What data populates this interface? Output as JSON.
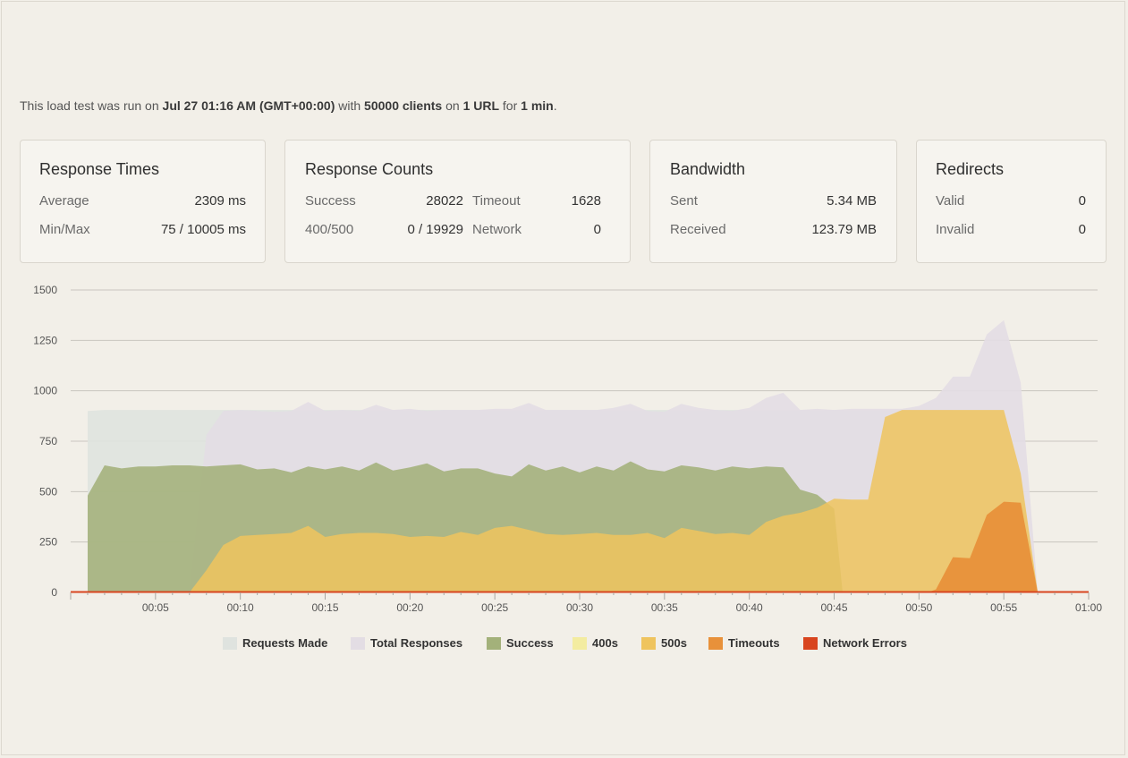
{
  "summary": {
    "prefix": "This load test was run on ",
    "date": "Jul 27 01:16 AM (GMT+00:00)",
    "with": " with ",
    "clients": "50000 clients",
    "on": " on ",
    "urls": "1 URL",
    "for": " for ",
    "duration": "1 min",
    "end": "."
  },
  "cards": {
    "response_times": {
      "title": "Response Times",
      "average_label": "Average",
      "average_value": "2309 ms",
      "minmax_label": "Min/Max",
      "minmax_value": "75 / 10005 ms"
    },
    "response_counts": {
      "title": "Response Counts",
      "success_label": "Success",
      "success_value": "28022",
      "timeout_label": "Timeout",
      "timeout_value": "1628",
      "status_label": "400/500",
      "status_value": "0 / 19929",
      "network_label": "Network",
      "network_value": "0"
    },
    "bandwidth": {
      "title": "Bandwidth",
      "sent_label": "Sent",
      "sent_value": "5.34 MB",
      "received_label": "Received",
      "received_value": "123.79 MB"
    },
    "redirects": {
      "title": "Redirects",
      "valid_label": "Valid",
      "valid_value": "0",
      "invalid_label": "Invalid",
      "invalid_value": "0"
    }
  },
  "chart_data": {
    "type": "area",
    "title": "",
    "xlabel": "",
    "ylabel": "",
    "xlim": [
      0,
      60
    ],
    "ylim": [
      0,
      1500
    ],
    "yticks": [
      0,
      250,
      500,
      750,
      1000,
      1250,
      1500
    ],
    "xticks": [
      {
        "t": 5,
        "label": "00:05"
      },
      {
        "t": 10,
        "label": "00:10"
      },
      {
        "t": 15,
        "label": "00:15"
      },
      {
        "t": 20,
        "label": "00:20"
      },
      {
        "t": 25,
        "label": "00:25"
      },
      {
        "t": 30,
        "label": "00:30"
      },
      {
        "t": 35,
        "label": "00:35"
      },
      {
        "t": 40,
        "label": "00:40"
      },
      {
        "t": 45,
        "label": "00:45"
      },
      {
        "t": 50,
        "label": "00:50"
      },
      {
        "t": 55,
        "label": "00:55"
      },
      {
        "t": 60,
        "label": "01:00"
      }
    ],
    "grid": true,
    "legend_position": "bottom",
    "series": [
      {
        "name": "Requests Made",
        "color": "#dfe3df",
        "opacity": 0.9,
        "points": [
          [
            1,
            0
          ],
          [
            1,
            900
          ],
          [
            2,
            905
          ],
          [
            10,
            905
          ],
          [
            20,
            905
          ],
          [
            30,
            905
          ],
          [
            40,
            905
          ],
          [
            48,
            905
          ],
          [
            49,
            905
          ],
          [
            52,
            905
          ],
          [
            52.5,
            0
          ]
        ]
      },
      {
        "name": "Total Responses",
        "color": "#e3dde4",
        "opacity": 0.9,
        "points": [
          [
            7,
            0
          ],
          [
            8,
            780
          ],
          [
            9,
            900
          ],
          [
            10,
            905
          ],
          [
            11,
            900
          ],
          [
            12,
            895
          ],
          [
            13,
            900
          ],
          [
            14,
            945
          ],
          [
            15,
            900
          ],
          [
            16,
            905
          ],
          [
            17,
            900
          ],
          [
            18,
            930
          ],
          [
            19,
            905
          ],
          [
            20,
            910
          ],
          [
            21,
            900
          ],
          [
            22,
            905
          ],
          [
            23,
            905
          ],
          [
            24,
            905
          ],
          [
            25,
            910
          ],
          [
            26,
            910
          ],
          [
            27,
            940
          ],
          [
            28,
            905
          ],
          [
            29,
            905
          ],
          [
            30,
            905
          ],
          [
            31,
            905
          ],
          [
            32,
            915
          ],
          [
            33,
            935
          ],
          [
            34,
            900
          ],
          [
            35,
            895
          ],
          [
            36,
            935
          ],
          [
            37,
            915
          ],
          [
            38,
            905
          ],
          [
            39,
            900
          ],
          [
            40,
            915
          ],
          [
            41,
            965
          ],
          [
            42,
            990
          ],
          [
            43,
            905
          ],
          [
            44,
            910
          ],
          [
            45,
            905
          ],
          [
            46,
            910
          ],
          [
            47,
            910
          ],
          [
            48,
            910
          ],
          [
            49,
            910
          ],
          [
            50,
            925
          ],
          [
            51,
            965
          ],
          [
            52,
            1070
          ],
          [
            53,
            1070
          ],
          [
            54,
            1280
          ],
          [
            55,
            1350
          ],
          [
            56,
            1040
          ],
          [
            57,
            0
          ]
        ]
      },
      {
        "name": "Success",
        "color": "#a3b17a",
        "opacity": 0.88,
        "points": [
          [
            1,
            0
          ],
          [
            1,
            480
          ],
          [
            2,
            630
          ],
          [
            3,
            615
          ],
          [
            4,
            625
          ],
          [
            5,
            625
          ],
          [
            6,
            630
          ],
          [
            7,
            630
          ],
          [
            8,
            625
          ],
          [
            9,
            630
          ],
          [
            10,
            635
          ],
          [
            11,
            610
          ],
          [
            12,
            615
          ],
          [
            13,
            595
          ],
          [
            14,
            625
          ],
          [
            15,
            610
          ],
          [
            16,
            625
          ],
          [
            17,
            605
          ],
          [
            18,
            645
          ],
          [
            19,
            605
          ],
          [
            20,
            620
          ],
          [
            21,
            640
          ],
          [
            22,
            600
          ],
          [
            23,
            615
          ],
          [
            24,
            615
          ],
          [
            25,
            590
          ],
          [
            26,
            575
          ],
          [
            27,
            635
          ],
          [
            28,
            605
          ],
          [
            29,
            625
          ],
          [
            30,
            595
          ],
          [
            31,
            625
          ],
          [
            32,
            605
          ],
          [
            33,
            650
          ],
          [
            34,
            610
          ],
          [
            35,
            600
          ],
          [
            36,
            630
          ],
          [
            37,
            620
          ],
          [
            38,
            605
          ],
          [
            39,
            625
          ],
          [
            40,
            615
          ],
          [
            41,
            625
          ],
          [
            42,
            620
          ],
          [
            43,
            510
          ],
          [
            44,
            485
          ],
          [
            45,
            415
          ],
          [
            45.5,
            0
          ]
        ]
      },
      {
        "name": "400s",
        "color": "#f3eca0",
        "opacity": 0.9,
        "points": []
      },
      {
        "name": "500s",
        "color": "#efc45e",
        "opacity": 0.85,
        "points": [
          [
            7,
            0
          ],
          [
            8,
            110
          ],
          [
            9,
            235
          ],
          [
            10,
            280
          ],
          [
            11,
            285
          ],
          [
            12,
            290
          ],
          [
            13,
            295
          ],
          [
            14,
            330
          ],
          [
            15,
            275
          ],
          [
            16,
            290
          ],
          [
            17,
            295
          ],
          [
            18,
            295
          ],
          [
            19,
            290
          ],
          [
            20,
            275
          ],
          [
            21,
            280
          ],
          [
            22,
            275
          ],
          [
            23,
            300
          ],
          [
            24,
            285
          ],
          [
            25,
            320
          ],
          [
            26,
            330
          ],
          [
            27,
            310
          ],
          [
            28,
            290
          ],
          [
            29,
            285
          ],
          [
            30,
            290
          ],
          [
            31,
            295
          ],
          [
            32,
            285
          ],
          [
            33,
            285
          ],
          [
            34,
            295
          ],
          [
            35,
            270
          ],
          [
            36,
            320
          ],
          [
            37,
            305
          ],
          [
            38,
            290
          ],
          [
            39,
            295
          ],
          [
            40,
            285
          ],
          [
            41,
            350
          ],
          [
            42,
            380
          ],
          [
            43,
            395
          ],
          [
            44,
            420
          ],
          [
            45,
            465
          ],
          [
            46,
            460
          ],
          [
            47,
            460
          ],
          [
            48,
            870
          ],
          [
            49,
            905
          ],
          [
            50,
            905
          ],
          [
            51,
            905
          ],
          [
            52,
            905
          ],
          [
            53,
            905
          ],
          [
            54,
            905
          ],
          [
            55,
            905
          ],
          [
            56,
            590
          ],
          [
            57,
            0
          ]
        ]
      },
      {
        "name": "Timeouts",
        "color": "#e8913a",
        "opacity": 0.95,
        "points": [
          [
            50.5,
            0
          ],
          [
            51,
            15
          ],
          [
            52,
            175
          ],
          [
            53,
            170
          ],
          [
            54,
            385
          ],
          [
            55,
            450
          ],
          [
            56,
            445
          ],
          [
            57,
            0
          ]
        ]
      },
      {
        "name": "Network Errors",
        "color": "#d8451f",
        "opacity": 1,
        "points": [
          [
            0,
            0
          ],
          [
            60,
            0
          ]
        ]
      }
    ]
  }
}
